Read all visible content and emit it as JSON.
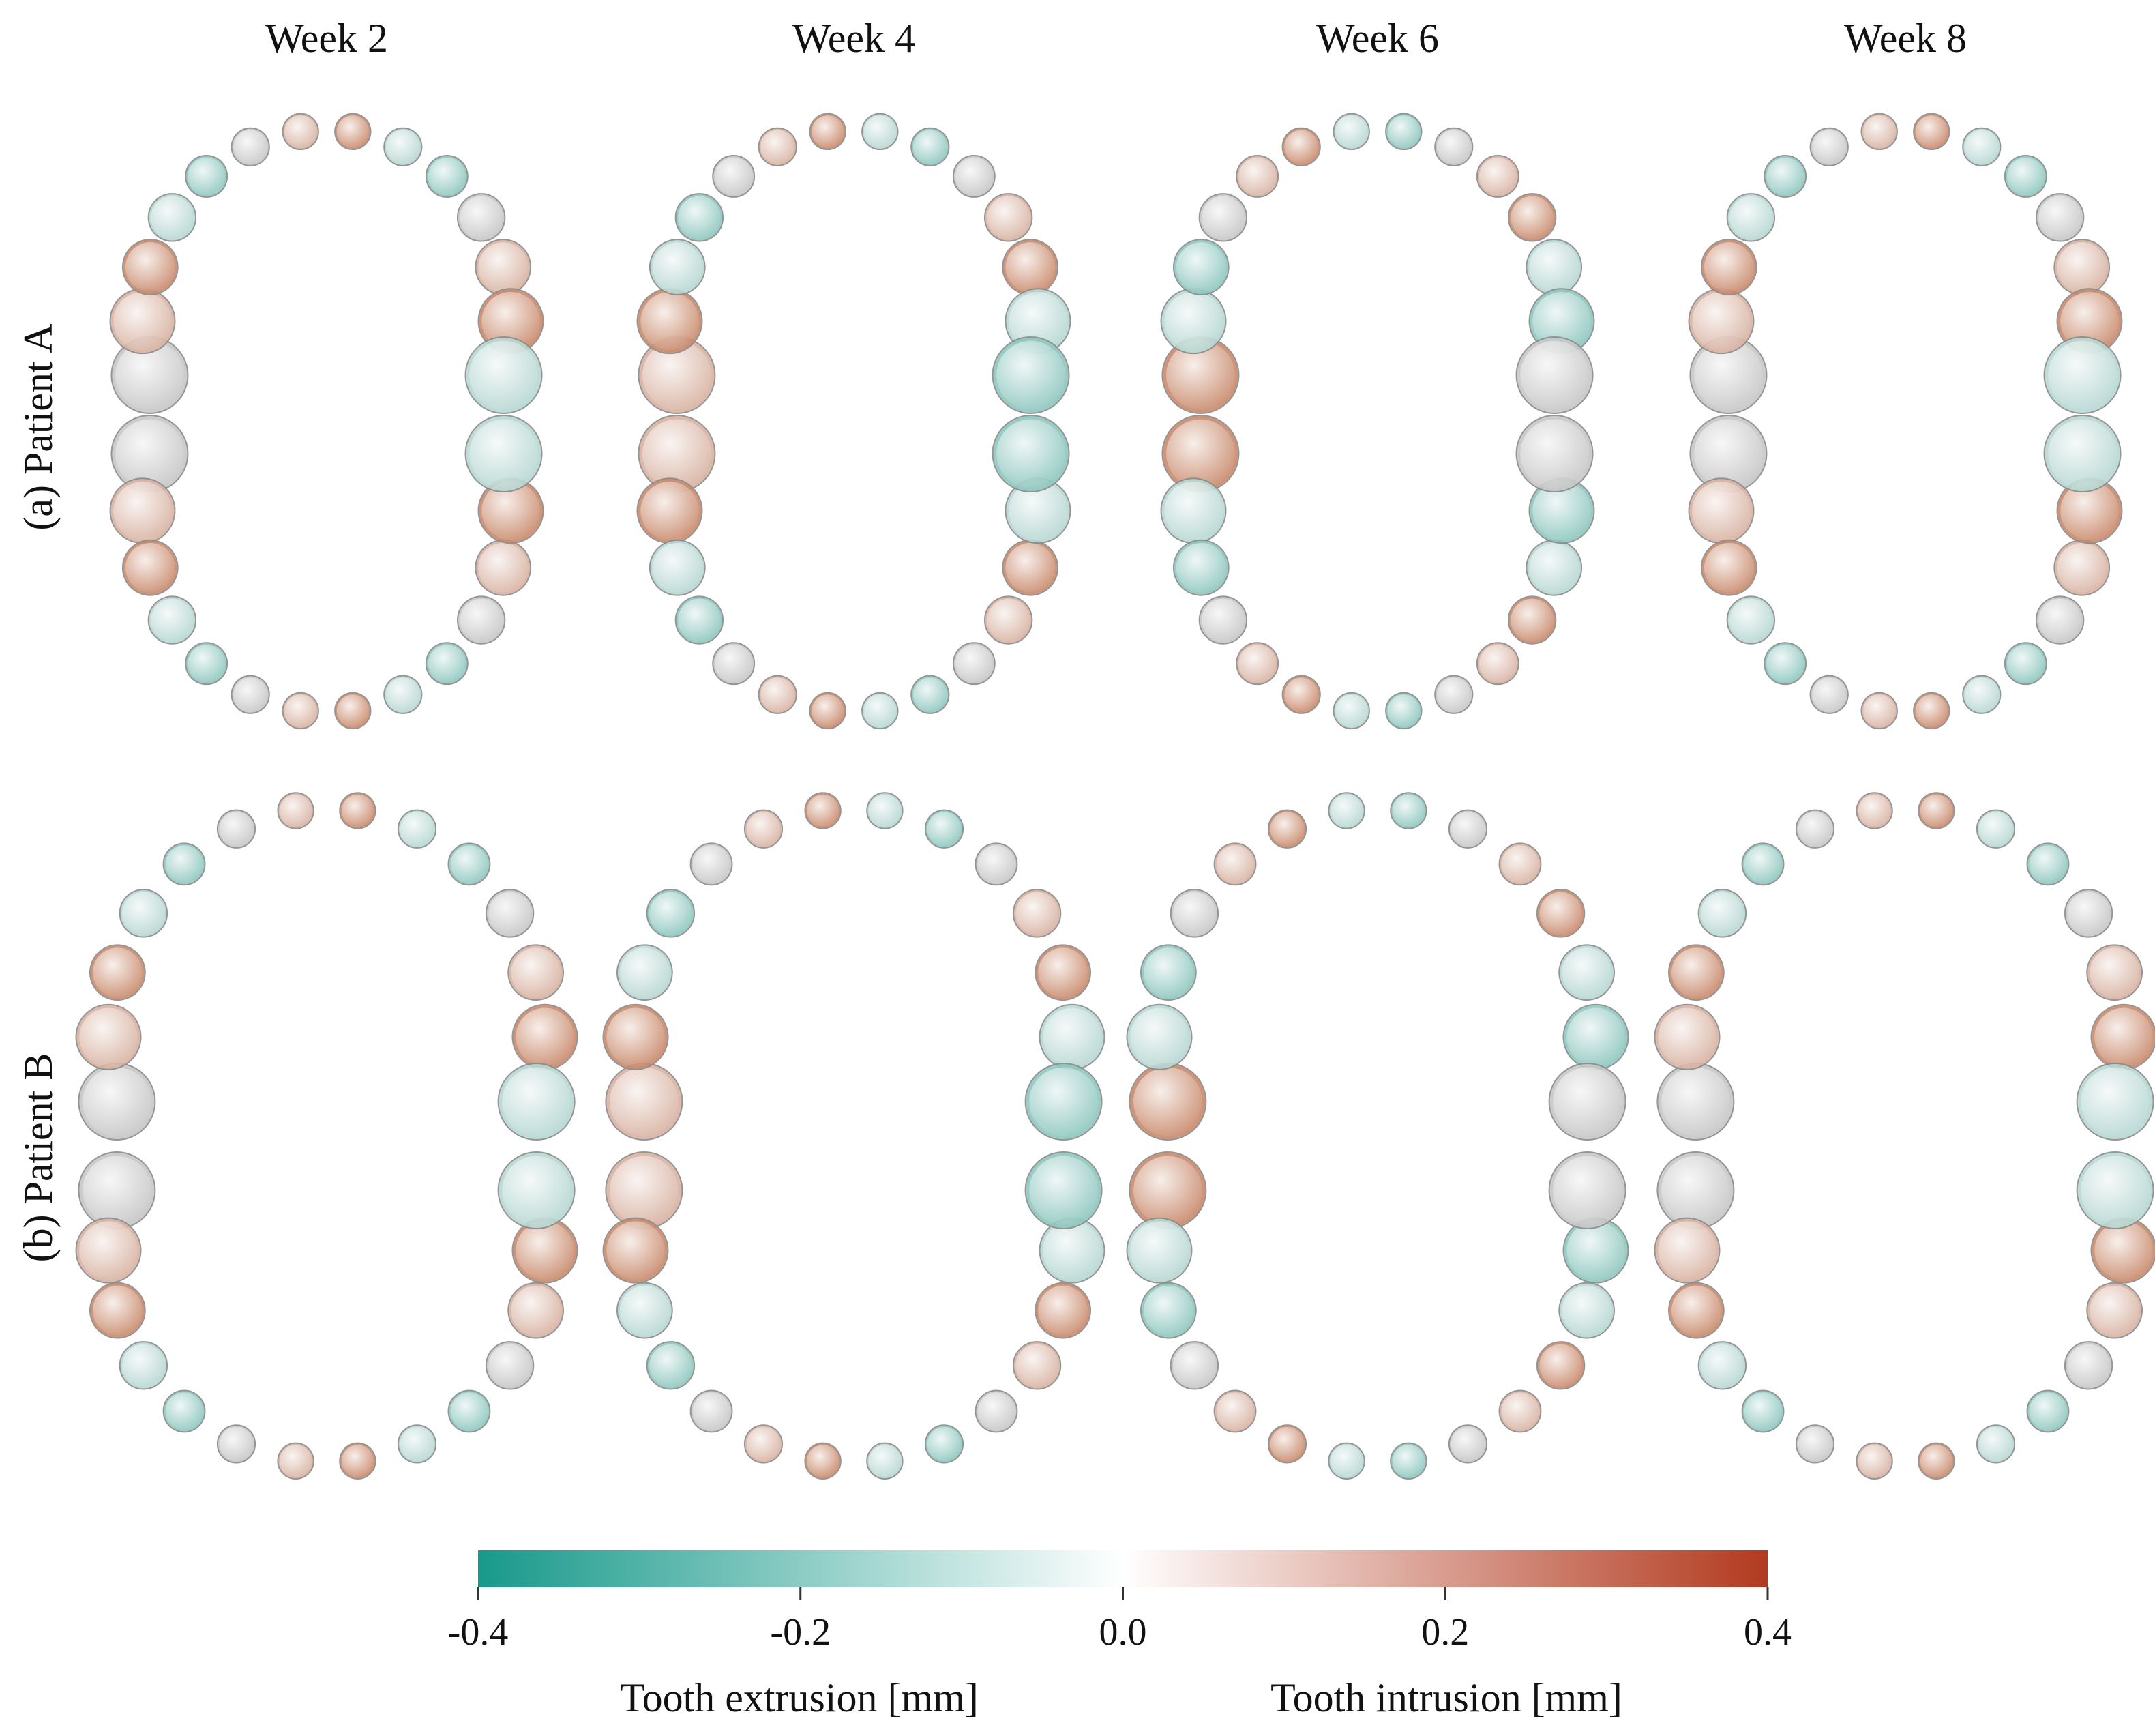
{
  "columns": [
    "Week 2",
    "Week 4",
    "Week 6",
    "Week 8"
  ],
  "rows": [
    "(a) Patient A",
    "(b) Patient B"
  ],
  "colorbar": {
    "range": [
      -0.4,
      0.4
    ],
    "colors": [
      "#17998a",
      "#ffffff",
      "#b23a1f"
    ],
    "ticks": [
      -0.4,
      -0.2,
      {
        "value": 0,
        "label": "0.0"
      },
      0.2,
      0.4
    ],
    "left_label": "Tooth extrusion [mm]",
    "right_label": "Tooth intrusion [mm]"
  }
}
